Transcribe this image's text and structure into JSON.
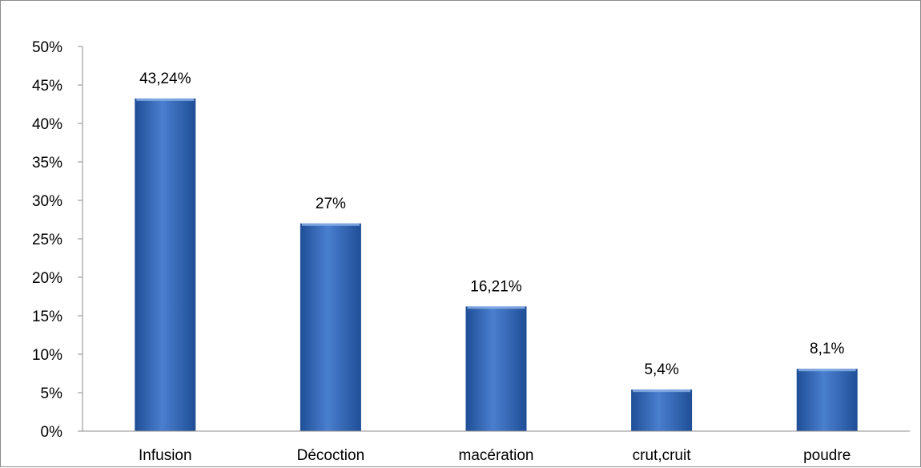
{
  "chart_data": {
    "type": "bar",
    "title": "",
    "xlabel": "",
    "ylabel": "",
    "categories": [
      "Infusion",
      "Décoction",
      "macération",
      "crut,cruit",
      "poudre"
    ],
    "values": [
      43.24,
      27,
      16.21,
      5.4,
      8.1
    ],
    "data_labels": [
      "43,24%",
      "27%",
      "16,21%",
      "5,4%",
      "8,1%"
    ],
    "ylim": [
      0,
      50
    ],
    "yticks": [
      0,
      5,
      10,
      15,
      20,
      25,
      30,
      35,
      40,
      45,
      50
    ],
    "ytick_labels": [
      "0%",
      "5%",
      "10%",
      "15%",
      "20%",
      "25%",
      "30%",
      "35%",
      "40%",
      "45%",
      "50%"
    ],
    "grid": false,
    "legend": "none",
    "bar_color": "#4a7fcf",
    "bar_color_dark": "#1f4e96",
    "axis_color": "#8c8c8c"
  }
}
